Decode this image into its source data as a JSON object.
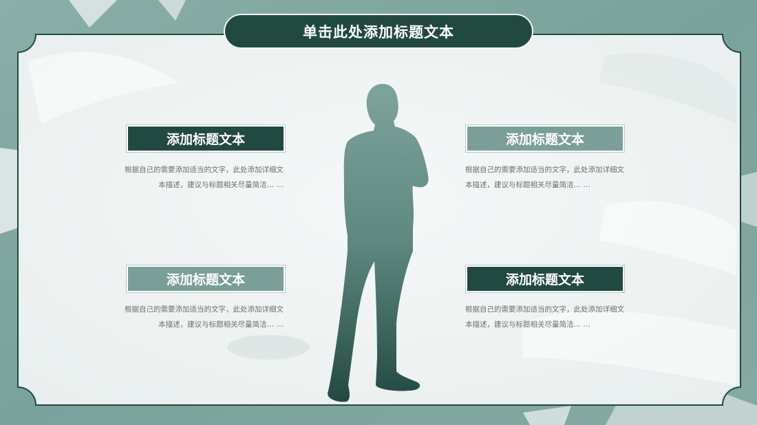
{
  "slide": {
    "title": "单击此处添加标题文本",
    "items": [
      {
        "heading": "添加标题文本",
        "body_line1": "根据自己的需要添加适当的文字，此处添加详细文",
        "body_line2": "本描述，建议与标题相关尽量简洁…  …"
      },
      {
        "heading": "添加标题文本",
        "body_line1": "根据自己的需要添加适当的文字，此处添加详细文",
        "body_line2": "本描述，建议与标题相关尽量简洁…  …"
      },
      {
        "heading": "添加标题文本",
        "body_line1": "根据自己的需要添加适当的文字，此处添加详细文",
        "body_line2": "本描述，建议与标题相关尽量简洁…  …"
      },
      {
        "heading": "添加标题文本",
        "body_line1": "根据自己的需要添加适当的文字，此处添加详细文",
        "body_line2": "本描述，建议与标题相关尽量简洁…  …"
      }
    ]
  },
  "colors": {
    "background": "#7fa59f",
    "panel": "#f2f5f5",
    "dark_green": "#224941",
    "light_green": "#7b9f98",
    "body_text": "#6e6e6e"
  },
  "icons": {
    "figure": "businessman-silhouette"
  }
}
